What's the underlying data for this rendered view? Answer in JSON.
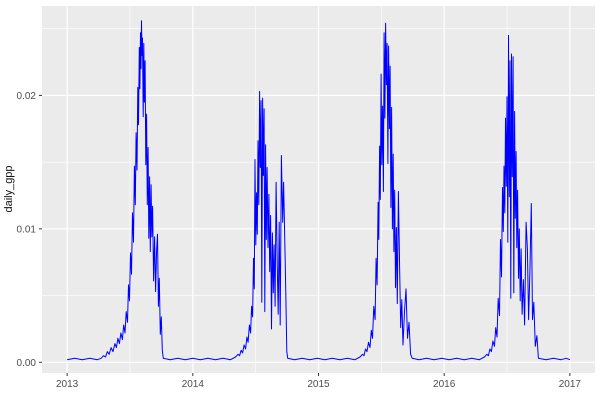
{
  "chart_data": {
    "type": "line",
    "title": "",
    "xlabel": "",
    "ylabel": "daily_gpp",
    "theme": "ggplot2-grey",
    "legend": "none",
    "grid": true,
    "xlim": [
      2012.8,
      2017.2
    ],
    "ylim": [
      -0.0008,
      0.0267
    ],
    "x_ticks": {
      "values": [
        2013,
        2014,
        2015,
        2016,
        2017
      ],
      "labels": [
        "2013",
        "2014",
        "2015",
        "2016",
        "2017"
      ]
    },
    "y_ticks": {
      "values": [
        0.0,
        0.01,
        0.02
      ],
      "labels": [
        "0.00",
        "0.01",
        "0.02"
      ]
    },
    "x_minor": [
      2013.5,
      2014.5,
      2015.5,
      2016.5
    ],
    "y_minor": [
      0.005,
      0.015,
      0.025
    ],
    "series": [
      {
        "name": "daily_gpp",
        "color": "#0000ff",
        "points": [
          [
            2013.0,
            0.0002
          ],
          [
            2013.06,
            0.0003
          ],
          [
            2013.12,
            0.0002
          ],
          [
            2013.18,
            0.0003
          ],
          [
            2013.24,
            0.0002
          ],
          [
            2013.27,
            0.0003
          ],
          [
            2013.29,
            0.0005
          ],
          [
            2013.305,
            0.0004
          ],
          [
            2013.32,
            0.0008
          ],
          [
            2013.335,
            0.0006
          ],
          [
            2013.35,
            0.0011
          ],
          [
            2013.365,
            0.0008
          ],
          [
            2013.38,
            0.0014
          ],
          [
            2013.392,
            0.0011
          ],
          [
            2013.404,
            0.0018
          ],
          [
            2013.416,
            0.0014
          ],
          [
            2013.428,
            0.0022
          ],
          [
            2013.44,
            0.0017
          ],
          [
            2013.45,
            0.0028
          ],
          [
            2013.46,
            0.0022
          ],
          [
            2013.47,
            0.0038
          ],
          [
            2013.48,
            0.003
          ],
          [
            2013.488,
            0.0058
          ],
          [
            2013.496,
            0.0046
          ],
          [
            2013.504,
            0.0082
          ],
          [
            2013.512,
            0.0066
          ],
          [
            2013.52,
            0.0112
          ],
          [
            2013.528,
            0.009
          ],
          [
            2013.535,
            0.0147
          ],
          [
            2013.542,
            0.0118
          ],
          [
            2013.549,
            0.0172
          ],
          [
            2013.556,
            0.0144
          ],
          [
            2013.562,
            0.0206
          ],
          [
            2013.568,
            0.0178
          ],
          [
            2013.574,
            0.0236
          ],
          [
            2013.579,
            0.0205
          ],
          [
            2013.584,
            0.0247
          ],
          [
            2013.588,
            0.022
          ],
          [
            2013.592,
            0.0256
          ],
          [
            2013.596,
            0.023
          ],
          [
            2013.6,
            0.0243
          ],
          [
            2013.605,
            0.0184
          ],
          [
            2013.61,
            0.0239
          ],
          [
            2013.615,
            0.0195
          ],
          [
            2013.62,
            0.0226
          ],
          [
            2013.626,
            0.0148
          ],
          [
            2013.632,
            0.0186
          ],
          [
            2013.638,
            0.0118
          ],
          [
            2013.644,
            0.0161
          ],
          [
            2013.65,
            0.0093
          ],
          [
            2013.656,
            0.0139
          ],
          [
            2013.662,
            0.0083
          ],
          [
            2013.668,
            0.0133
          ],
          [
            2013.674,
            0.0094
          ],
          [
            2013.68,
            0.0117
          ],
          [
            2013.688,
            0.0061
          ],
          [
            2013.696,
            0.0094
          ],
          [
            2013.704,
            0.0053
          ],
          [
            2013.712,
            0.0084
          ],
          [
            2013.719,
            0.0096
          ],
          [
            2013.726,
            0.0042
          ],
          [
            2013.733,
            0.0063
          ],
          [
            2013.741,
            0.0021
          ],
          [
            2013.749,
            0.0034
          ],
          [
            2013.757,
            0.0009
          ],
          [
            2013.765,
            0.0003
          ],
          [
            2013.82,
            0.0002
          ],
          [
            2013.88,
            0.0003
          ],
          [
            2013.94,
            0.0002
          ],
          [
            2014.0,
            0.0003
          ],
          [
            2014.06,
            0.0002
          ],
          [
            2014.12,
            0.0003
          ],
          [
            2014.18,
            0.0002
          ],
          [
            2014.24,
            0.0003
          ],
          [
            2014.3,
            0.0002
          ],
          [
            2014.34,
            0.0004
          ],
          [
            2014.36,
            0.0006
          ],
          [
            2014.372,
            0.0005
          ],
          [
            2014.384,
            0.0009
          ],
          [
            2014.396,
            0.0007
          ],
          [
            2014.408,
            0.0013
          ],
          [
            2014.42,
            0.001
          ],
          [
            2014.43,
            0.0019
          ],
          [
            2014.44,
            0.0015
          ],
          [
            2014.45,
            0.0028
          ],
          [
            2014.46,
            0.0022
          ],
          [
            2014.468,
            0.0042
          ],
          [
            2014.476,
            0.0034
          ],
          [
            2014.483,
            0.0078
          ],
          [
            2014.489,
            0.0055
          ],
          [
            2014.495,
            0.0152
          ],
          [
            2014.501,
            0.0088
          ],
          [
            2014.507,
            0.0127
          ],
          [
            2014.513,
            0.0096
          ],
          [
            2014.519,
            0.0166
          ],
          [
            2014.525,
            0.0118
          ],
          [
            2014.531,
            0.0203
          ],
          [
            2014.537,
            0.0146
          ],
          [
            2014.543,
            0.0196
          ],
          [
            2014.549,
            0.0045
          ],
          [
            2014.555,
            0.0198
          ],
          [
            2014.561,
            0.014
          ],
          [
            2014.567,
            0.019
          ],
          [
            2014.573,
            0.0038
          ],
          [
            2014.579,
            0.0163
          ],
          [
            2014.585,
            0.0092
          ],
          [
            2014.591,
            0.0146
          ],
          [
            2014.598,
            0.0086
          ],
          [
            2014.605,
            0.0126
          ],
          [
            2014.612,
            0.0068
          ],
          [
            2014.619,
            0.011
          ],
          [
            2014.626,
            0.0025
          ],
          [
            2014.633,
            0.0097
          ],
          [
            2014.64,
            0.0052
          ],
          [
            2014.647,
            0.0088
          ],
          [
            2014.655,
            0.0042
          ],
          [
            2014.663,
            0.0135
          ],
          [
            2014.671,
            0.0075
          ],
          [
            2014.679,
            0.0036
          ],
          [
            2014.687,
            0.0105
          ],
          [
            2014.695,
            0.0028
          ],
          [
            2014.705,
            0.0155
          ],
          [
            2014.715,
            0.0105
          ],
          [
            2014.722,
            0.0135
          ],
          [
            2014.73,
            0.0098
          ],
          [
            2014.74,
            0.0052
          ],
          [
            2014.748,
            0.0008
          ],
          [
            2014.755,
            0.0003
          ],
          [
            2014.81,
            0.0002
          ],
          [
            2014.87,
            0.0003
          ],
          [
            2014.93,
            0.0002
          ],
          [
            2014.99,
            0.0003
          ],
          [
            2015.05,
            0.0002
          ],
          [
            2015.11,
            0.0003
          ],
          [
            2015.17,
            0.0002
          ],
          [
            2015.23,
            0.0003
          ],
          [
            2015.29,
            0.0002
          ],
          [
            2015.33,
            0.0004
          ],
          [
            2015.35,
            0.0006
          ],
          [
            2015.362,
            0.0005
          ],
          [
            2015.374,
            0.001
          ],
          [
            2015.386,
            0.0008
          ],
          [
            2015.398,
            0.0015
          ],
          [
            2015.41,
            0.0011
          ],
          [
            2015.42,
            0.0024
          ],
          [
            2015.43,
            0.0018
          ],
          [
            2015.44,
            0.0042
          ],
          [
            2015.45,
            0.0032
          ],
          [
            2015.458,
            0.0078
          ],
          [
            2015.466,
            0.0058
          ],
          [
            2015.474,
            0.012
          ],
          [
            2015.48,
            0.0092
          ],
          [
            2015.486,
            0.0162
          ],
          [
            2015.492,
            0.0122
          ],
          [
            2015.498,
            0.0216
          ],
          [
            2015.504,
            0.0148
          ],
          [
            2015.51,
            0.0192
          ],
          [
            2015.516,
            0.0128
          ],
          [
            2015.522,
            0.0247
          ],
          [
            2015.528,
            0.0183
          ],
          [
            2015.534,
            0.0254
          ],
          [
            2015.54,
            0.0208
          ],
          [
            2015.546,
            0.0239
          ],
          [
            2015.552,
            0.0149
          ],
          [
            2015.558,
            0.0237
          ],
          [
            2015.564,
            0.0175
          ],
          [
            2015.57,
            0.0222
          ],
          [
            2015.576,
            0.0116
          ],
          [
            2015.582,
            0.0191
          ],
          [
            2015.588,
            0.01
          ],
          [
            2015.594,
            0.0156
          ],
          [
            2015.6,
            0.0083
          ],
          [
            2015.606,
            0.0129
          ],
          [
            2015.613,
            0.0056
          ],
          [
            2015.62,
            0.0101
          ],
          [
            2015.627,
            0.0044
          ],
          [
            2015.636,
            0.0128
          ],
          [
            2015.645,
            0.0072
          ],
          [
            2015.654,
            0.0026
          ],
          [
            2015.663,
            0.0047
          ],
          [
            2015.672,
            0.0013
          ],
          [
            2015.684,
            0.0038
          ],
          [
            2015.696,
            0.0055
          ],
          [
            2015.708,
            0.0018
          ],
          [
            2015.72,
            0.003
          ],
          [
            2015.733,
            0.0006
          ],
          [
            2015.746,
            0.0003
          ],
          [
            2015.8,
            0.0002
          ],
          [
            2015.86,
            0.0003
          ],
          [
            2015.92,
            0.0002
          ],
          [
            2015.98,
            0.0003
          ],
          [
            2016.04,
            0.0002
          ],
          [
            2016.1,
            0.0003
          ],
          [
            2016.16,
            0.0002
          ],
          [
            2016.22,
            0.0003
          ],
          [
            2016.28,
            0.0002
          ],
          [
            2016.32,
            0.0004
          ],
          [
            2016.34,
            0.0006
          ],
          [
            2016.352,
            0.0005
          ],
          [
            2016.364,
            0.001
          ],
          [
            2016.376,
            0.0008
          ],
          [
            2016.388,
            0.0016
          ],
          [
            2016.4,
            0.0012
          ],
          [
            2016.41,
            0.0026
          ],
          [
            2016.42,
            0.0019
          ],
          [
            2016.43,
            0.0048
          ],
          [
            2016.44,
            0.0035
          ],
          [
            2016.448,
            0.0092
          ],
          [
            2016.456,
            0.0064
          ],
          [
            2016.464,
            0.0131
          ],
          [
            2016.47,
            0.0098
          ],
          [
            2016.476,
            0.0147
          ],
          [
            2016.482,
            0.0112
          ],
          [
            2016.488,
            0.0183
          ],
          [
            2016.494,
            0.0132
          ],
          [
            2016.5,
            0.0199
          ],
          [
            2016.506,
            0.009
          ],
          [
            2016.512,
            0.0245
          ],
          [
            2016.518,
            0.0124
          ],
          [
            2016.524,
            0.0226
          ],
          [
            2016.53,
            0.0048
          ],
          [
            2016.536,
            0.0231
          ],
          [
            2016.542,
            0.0139
          ],
          [
            2016.548,
            0.0229
          ],
          [
            2016.554,
            0.0052
          ],
          [
            2016.56,
            0.0188
          ],
          [
            2016.566,
            0.0108
          ],
          [
            2016.572,
            0.0158
          ],
          [
            2016.578,
            0.0086
          ],
          [
            2016.584,
            0.0129
          ],
          [
            2016.591,
            0.0063
          ],
          [
            2016.598,
            0.01
          ],
          [
            2016.605,
            0.0046
          ],
          [
            2016.612,
            0.0085
          ],
          [
            2016.62,
            0.0036
          ],
          [
            2016.63,
            0.0062
          ],
          [
            2016.64,
            0.0028
          ],
          [
            2016.652,
            0.0105
          ],
          [
            2016.662,
            0.0085
          ],
          [
            2016.672,
            0.0032
          ],
          [
            2016.682,
            0.0068
          ],
          [
            2016.693,
            0.0119
          ],
          [
            2016.703,
            0.0032
          ],
          [
            2016.713,
            0.0045
          ],
          [
            2016.725,
            0.0012
          ],
          [
            2016.738,
            0.002
          ],
          [
            2016.75,
            0.0003
          ],
          [
            2016.81,
            0.0002
          ],
          [
            2016.87,
            0.0003
          ],
          [
            2016.93,
            0.0002
          ],
          [
            2016.97,
            0.0003
          ],
          [
            2017.0,
            0.0002
          ]
        ]
      }
    ]
  },
  "colors": {
    "outer_bg": "#ffffff",
    "panel_bg": "#ebebeb",
    "grid": "#ffffff",
    "axis_text": "#4d4d4d",
    "tick_mark": "#333333",
    "axis_title": "#111111",
    "line": "#0000ff"
  }
}
